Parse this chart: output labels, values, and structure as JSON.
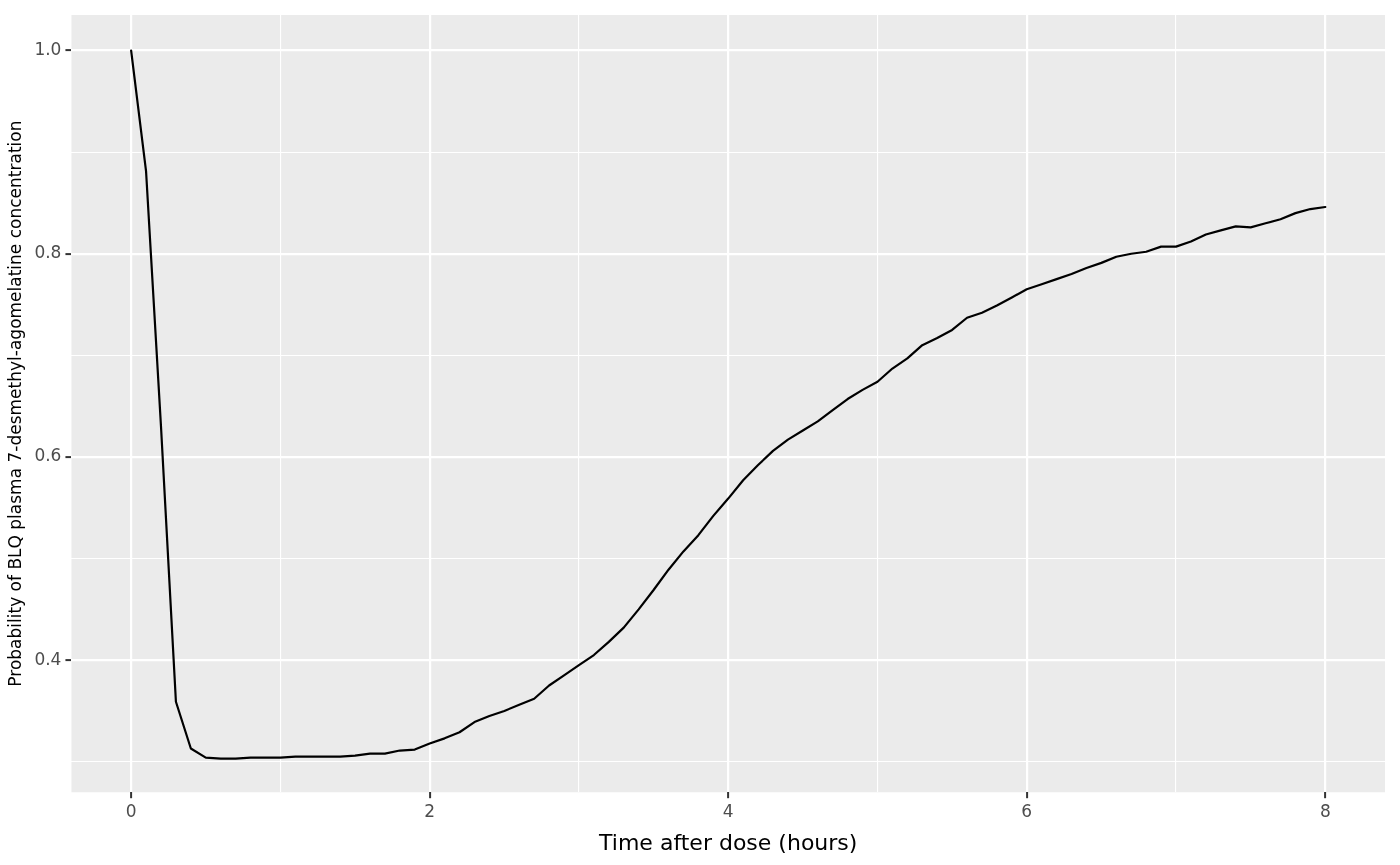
{
  "chart_data": {
    "type": "line",
    "xlabel": "Time after dose (hours)",
    "ylabel": "Probability of BLQ plasma 7-desmethyl-agomelatine concentration",
    "x": [
      0,
      0.1,
      0.2,
      0.3,
      0.4,
      0.5,
      0.6,
      0.7,
      0.8,
      0.9,
      1,
      1.1,
      1.2,
      1.3,
      1.4,
      1.5,
      1.6,
      1.7,
      1.8,
      1.9,
      2,
      2.1,
      2.2,
      2.3,
      2.4,
      2.5,
      2.6,
      2.7,
      2.8,
      2.9,
      3,
      3.1,
      3.2,
      3.3,
      3.4,
      3.5,
      3.6,
      3.7,
      3.8,
      3.9,
      4,
      4.1,
      4.2,
      4.3,
      4.4,
      4.5,
      4.6,
      4.7,
      4.8,
      4.9,
      5,
      5.1,
      5.2,
      5.3,
      5.4,
      5.5,
      5.6,
      5.7,
      5.8,
      5.9,
      6,
      6.1,
      6.2,
      6.3,
      6.4,
      6.5,
      6.6,
      6.7,
      6.8,
      6.9,
      7,
      7.1,
      7.2,
      7.3,
      7.4,
      7.5,
      7.6,
      7.7,
      7.8,
      7.9,
      8
    ],
    "values": [
      1.0,
      0.881,
      0.63,
      0.359,
      0.313,
      0.304,
      0.303,
      0.303,
      0.304,
      0.304,
      0.304,
      0.305,
      0.305,
      0.305,
      0.305,
      0.306,
      0.308,
      0.308,
      0.311,
      0.312,
      0.318,
      0.323,
      0.329,
      0.339,
      0.345,
      0.35,
      0.356,
      0.362,
      0.375,
      0.385,
      0.395,
      0.405,
      0.418,
      0.432,
      0.45,
      0.469,
      0.489,
      0.507,
      0.523,
      0.542,
      0.559,
      0.577,
      0.592,
      0.606,
      0.617,
      0.626,
      0.635,
      0.646,
      0.657,
      0.666,
      0.674,
      0.687,
      0.697,
      0.71,
      0.717,
      0.725,
      0.737,
      0.742,
      0.749,
      0.757,
      0.765,
      0.77,
      0.775,
      0.78,
      0.786,
      0.791,
      0.797,
      0.8,
      0.802,
      0.807,
      0.807,
      0.812,
      0.819,
      0.823,
      0.827,
      0.826,
      0.83,
      0.834,
      0.84,
      0.844,
      0.846
    ],
    "color": "#000000",
    "xlim": [
      -0.4,
      8.4
    ],
    "xticks": [
      0,
      {
        "value": 1,
        "label": null
      },
      2,
      {
        "value": 3,
        "label": null
      },
      4,
      {
        "value": 5,
        "label": null
      },
      6,
      {
        "value": 7,
        "label": null
      },
      8
    ],
    "ylim": [
      0.27,
      1.035
    ],
    "yticks": [
      {
        "value": 0.3,
        "label": null
      },
      0.4,
      {
        "value": 0.5,
        "label": null
      },
      0.6,
      {
        "value": 0.7,
        "label": null
      },
      0.8,
      {
        "value": 0.9,
        "label": null
      },
      {
        "value": 1,
        "label": "1.0"
      }
    ],
    "grid": true
  }
}
